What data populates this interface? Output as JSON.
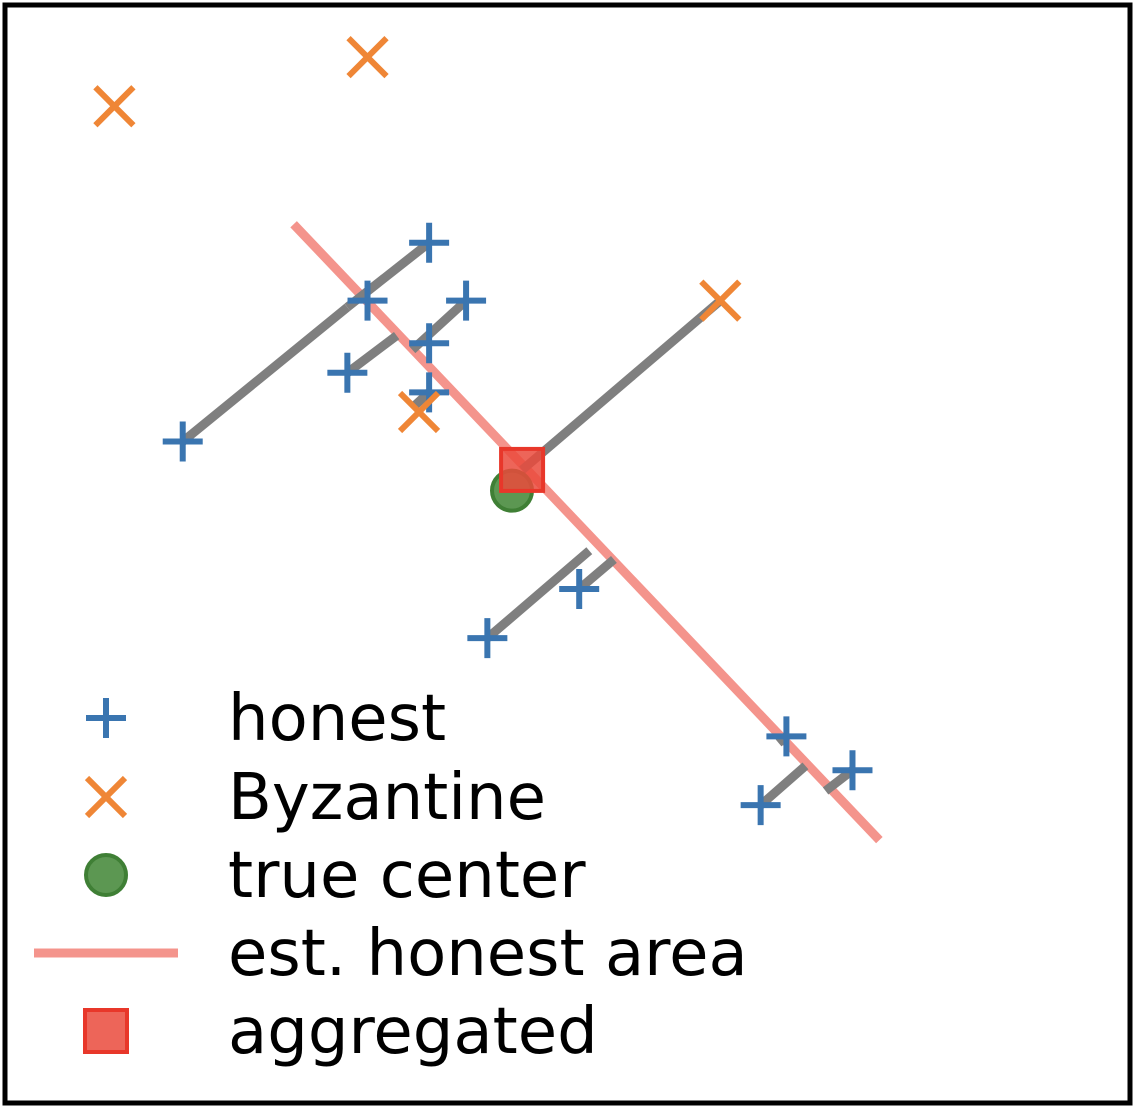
{
  "chart_data": {
    "type": "scatter",
    "title": "",
    "xlabel": "",
    "ylabel": "",
    "axes_ticks": false,
    "grid": false,
    "xlim": [
      0,
      10
    ],
    "ylim": [
      0,
      10
    ],
    "legend": {
      "placement": "bottom-left",
      "entries": [
        {
          "key": "honest",
          "label": "honest",
          "marker": "plus",
          "color": "#3a75b0"
        },
        {
          "key": "byzantine",
          "label": "Byzantine",
          "marker": "x",
          "color": "#ef8636"
        },
        {
          "key": "true_center",
          "label": "true center",
          "marker": "circle",
          "color": "#4a8c3f"
        },
        {
          "key": "est_area",
          "label": "est. honest area",
          "marker": "line",
          "color": "#f4948c"
        },
        {
          "key": "aggregated",
          "label": "aggregated",
          "marker": "square",
          "color": "#ea4a3c"
        }
      ]
    },
    "series": [
      {
        "name": "honest",
        "marker": "plus",
        "color": "#3a75b0",
        "points": [
          {
            "x": 3.76,
            "y": 7.85
          },
          {
            "x": 3.21,
            "y": 7.32
          },
          {
            "x": 4.09,
            "y": 7.32
          },
          {
            "x": 3.76,
            "y": 6.93
          },
          {
            "x": 3.03,
            "y": 6.66
          },
          {
            "x": 3.76,
            "y": 6.48
          },
          {
            "x": 1.56,
            "y": 6.03
          },
          {
            "x": 5.1,
            "y": 4.68
          },
          {
            "x": 4.28,
            "y": 4.23
          },
          {
            "x": 6.95,
            "y": 3.33
          },
          {
            "x": 7.54,
            "y": 3.02
          },
          {
            "x": 6.72,
            "y": 2.7
          }
        ]
      },
      {
        "name": "Byzantine",
        "marker": "x",
        "color": "#ef8636",
        "points": [
          {
            "x": 3.21,
            "y": 9.55
          },
          {
            "x": 0.95,
            "y": 9.1
          },
          {
            "x": 6.36,
            "y": 7.32
          },
          {
            "x": 3.67,
            "y": 6.3
          }
        ]
      },
      {
        "name": "true center",
        "marker": "circle",
        "color": "#4a8c3f",
        "points": [
          {
            "x": 4.5,
            "y": 5.58
          }
        ]
      },
      {
        "name": "aggregated",
        "marker": "square",
        "color": "#ea4a3c",
        "points": [
          {
            "x": 4.59,
            "y": 5.77
          }
        ]
      }
    ],
    "est_area": {
      "name": "est. honest area",
      "color": "#f4948c",
      "from": {
        "x": 2.55,
        "y": 8.02
      },
      "to": {
        "x": 7.78,
        "y": 2.38
      }
    },
    "projection_lines": {
      "color": "#7f7f7f",
      "segments": [
        {
          "x1": 3.76,
          "y1": 7.85,
          "x2": 3.03,
          "y2": 7.26
        },
        {
          "x1": 1.56,
          "y1": 6.03,
          "x2": 3.03,
          "y2": 7.26
        },
        {
          "x1": 3.03,
          "y1": 6.66,
          "x2": 3.47,
          "y2": 7.0
        },
        {
          "x1": 4.09,
          "y1": 7.32,
          "x2": 3.61,
          "y2": 6.87
        },
        {
          "x1": 3.76,
          "y1": 6.48,
          "x2": 3.61,
          "y2": 6.34
        },
        {
          "x1": 6.36,
          "y1": 7.32,
          "x2": 4.59,
          "y2": 5.77
        },
        {
          "x1": 4.28,
          "y1": 4.23,
          "x2": 5.19,
          "y2": 5.03
        },
        {
          "x1": 5.1,
          "y1": 4.68,
          "x2": 5.41,
          "y2": 4.95
        },
        {
          "x1": 6.95,
          "y1": 3.33,
          "x2": 6.88,
          "y2": 3.27
        },
        {
          "x1": 6.72,
          "y1": 2.7,
          "x2": 7.12,
          "y2": 3.06
        },
        {
          "x1": 7.54,
          "y1": 3.02,
          "x2": 7.3,
          "y2": 2.83
        }
      ]
    }
  }
}
